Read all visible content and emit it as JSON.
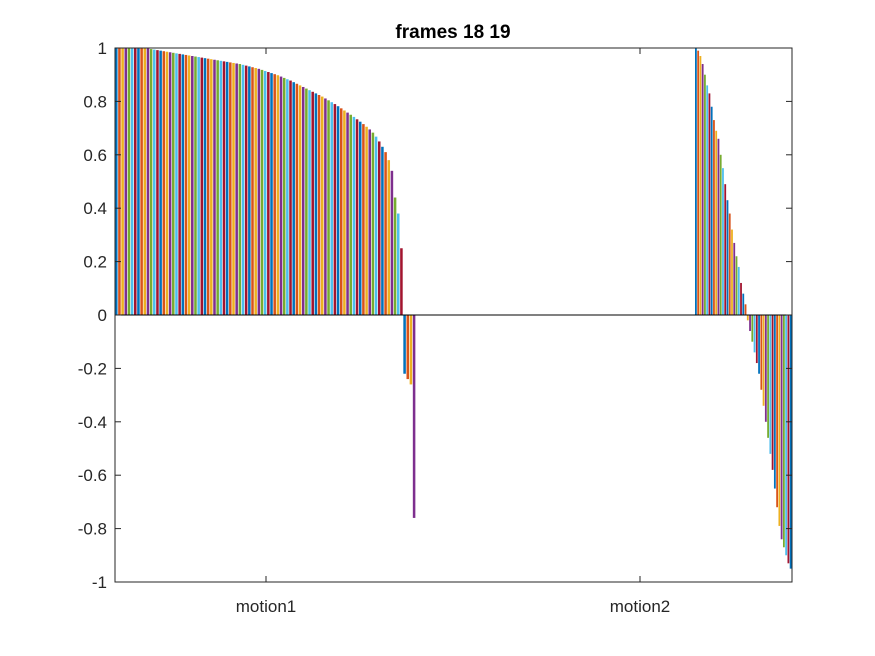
{
  "chart_data": {
    "type": "bar",
    "title": "frames 18 19",
    "xlabel": "",
    "ylabel": "",
    "ylim": [
      -1,
      1
    ],
    "yticks": [
      "-1",
      "-0.8",
      "-0.6",
      "-0.4",
      "-0.2",
      "0",
      "0.2",
      "0.4",
      "0.6",
      "0.8",
      "1"
    ],
    "categories": [
      "motion1",
      "motion2"
    ],
    "grid": false,
    "colors": [
      "#0072BD",
      "#D95319",
      "#EDB120",
      "#7E2F8E",
      "#77AC30",
      "#4DBEEE",
      "#A2142F"
    ],
    "groups": [
      {
        "category": "motion1",
        "values": [
          1.0,
          1.0,
          1.0,
          1.0,
          1.0,
          1.0,
          1.0,
          1.0,
          1.0,
          0.999,
          0.998,
          0.996,
          0.994,
          0.992,
          0.99,
          0.988,
          0.986,
          0.984,
          0.982,
          0.98,
          0.978,
          0.976,
          0.974,
          0.972,
          0.97,
          0.968,
          0.966,
          0.964,
          0.962,
          0.96,
          0.958,
          0.956,
          0.954,
          0.952,
          0.95,
          0.948,
          0.946,
          0.944,
          0.942,
          0.94,
          0.937,
          0.934,
          0.931,
          0.928,
          0.925,
          0.922,
          0.918,
          0.914,
          0.91,
          0.906,
          0.902,
          0.898,
          0.893,
          0.888,
          0.883,
          0.878,
          0.872,
          0.866,
          0.86,
          0.854,
          0.848,
          0.842,
          0.836,
          0.83,
          0.824,
          0.818,
          0.811,
          0.804,
          0.797,
          0.79,
          0.782,
          0.774,
          0.766,
          0.758,
          0.75,
          0.742,
          0.733,
          0.724,
          0.715,
          0.705,
          0.695,
          0.683,
          0.668,
          0.65,
          0.63,
          0.61,
          0.58,
          0.54,
          0.44,
          0.38,
          0.25,
          -0.22,
          -0.24,
          -0.26,
          -0.76
        ]
      },
      {
        "category": "motion2",
        "values": [
          1.0,
          0.99,
          0.97,
          0.94,
          0.9,
          0.86,
          0.83,
          0.78,
          0.73,
          0.69,
          0.66,
          0.6,
          0.55,
          0.49,
          0.43,
          0.38,
          0.32,
          0.27,
          0.22,
          0.18,
          0.12,
          0.08,
          0.04,
          -0.02,
          -0.06,
          -0.1,
          -0.14,
          -0.18,
          -0.22,
          -0.28,
          -0.34,
          -0.4,
          -0.46,
          -0.52,
          -0.58,
          -0.65,
          -0.72,
          -0.79,
          -0.84,
          -0.87,
          -0.9,
          -0.93,
          -0.95
        ]
      }
    ]
  }
}
